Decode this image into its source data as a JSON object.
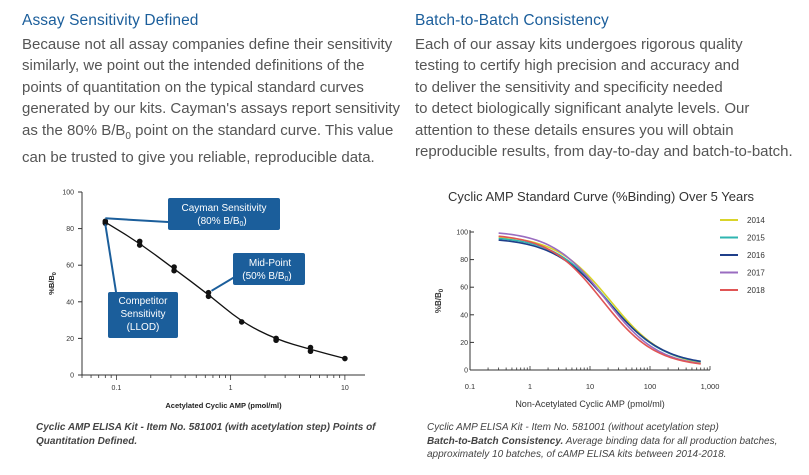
{
  "left": {
    "heading": "Assay Sensitivity Defined",
    "para": [
      "Because not all assay companies define their sensitivity",
      "similarly, we point out the intended definitions of the",
      "points of quantitation on the typical standard curves",
      "generated by our kits. Cayman's assays report sensitivity",
      "as the 80% B/B0 point on the standard curve. This value",
      "can be trusted to give you reliable, reproducible data."
    ],
    "caption_bold": "Cyclic AMP ELISA Kit - Item No. 581001 (with acetylation step) Points of Quantitation Defined."
  },
  "right": {
    "heading": "Batch-to-Batch Consistency",
    "para": [
      "Each of our assay kits undergoes rigorous quality",
      "testing to certify high precision and accuracy and",
      "to deliver the sensitivity and specificity needed",
      "to detect biologically significant analyte levels. Our",
      "attention to these details ensures you will obtain",
      "reproducible results, from day-to-day and batch-to-batch."
    ],
    "caption_line1": "Cyclic AMP ELISA Kit - Item No. 581001 (without acetylation step)",
    "caption_bold": "Batch-to-Batch Consistency.",
    "caption_rest": " Average binding data for all production batches, approximately 10 batches, of cAMP ELISA kits between 2014-2018."
  },
  "chart_data": [
    {
      "type": "scatter",
      "title": "",
      "xlabel": "Acetylated Cyclic AMP (pmol/ml)",
      "ylabel": "%B/B0",
      "xscale": "log",
      "xlim": [
        0.05,
        15
      ],
      "ylim": [
        0,
        100
      ],
      "xticks": [
        "0.1",
        "1",
        "10"
      ],
      "yticks": [
        "0",
        "20",
        "40",
        "60",
        "80",
        "100"
      ],
      "points": [
        {
          "x": 0.08,
          "y": 83
        },
        {
          "x": 0.08,
          "y": 84
        },
        {
          "x": 0.16,
          "y": 71
        },
        {
          "x": 0.16,
          "y": 73
        },
        {
          "x": 0.32,
          "y": 57
        },
        {
          "x": 0.32,
          "y": 59
        },
        {
          "x": 0.64,
          "y": 43
        },
        {
          "x": 0.64,
          "y": 45
        },
        {
          "x": 1.25,
          "y": 29
        },
        {
          "x": 2.5,
          "y": 19
        },
        {
          "x": 2.5,
          "y": 20
        },
        {
          "x": 5,
          "y": 13
        },
        {
          "x": 5,
          "y": 15
        },
        {
          "x": 10,
          "y": 9
        }
      ],
      "curve": [
        {
          "x": 0.08,
          "y": 83.5
        },
        {
          "x": 0.16,
          "y": 72
        },
        {
          "x": 0.32,
          "y": 58
        },
        {
          "x": 0.64,
          "y": 44
        },
        {
          "x": 1.25,
          "y": 29
        },
        {
          "x": 2.5,
          "y": 19.5
        },
        {
          "x": 5,
          "y": 14
        },
        {
          "x": 10,
          "y": 9
        }
      ],
      "annotations": [
        {
          "label": "Cayman Sensitivity",
          "sub": "(80% B/B",
          "sub0": "0",
          "close": ")"
        },
        {
          "label": "Mid-Point",
          "sub": "(50% B/B",
          "sub0": "0",
          "close": ")"
        },
        {
          "label": "Competitor",
          "line2": "Sensitivity",
          "line3": "(LLOD)"
        }
      ],
      "annotation_color": "#1b5e9b"
    },
    {
      "type": "line",
      "title": "Cyclic AMP Standard Curve (%Binding) Over 5 Years",
      "xlabel": "Non-Acetylated Cyclic AMP (pmol/ml)",
      "ylabel": "%B/B0",
      "xscale": "log",
      "xlim": [
        0.1,
        1000
      ],
      "ylim": [
        0,
        100
      ],
      "xticks": [
        "0.1",
        "1",
        "10",
        "100",
        "1,000"
      ],
      "yticks": [
        "0",
        "20",
        "40",
        "60",
        "80",
        "100"
      ],
      "legend_position": "top-right",
      "series": [
        {
          "name": "2014",
          "color": "#d9d42a",
          "ic50": 22,
          "slope": 0.95,
          "top": 98,
          "bottom": 2
        },
        {
          "name": "2015",
          "color": "#2fb5b0",
          "ic50": 20,
          "slope": 0.95,
          "top": 97,
          "bottom": 3
        },
        {
          "name": "2016",
          "color": "#1f3f8a",
          "ic50": 20,
          "slope": 0.93,
          "top": 96,
          "bottom": 3
        },
        {
          "name": "2017",
          "color": "#9a6cc0",
          "ic50": 18,
          "slope": 0.98,
          "top": 101,
          "bottom": 2
        },
        {
          "name": "2018",
          "color": "#e05555",
          "ic50": 16,
          "slope": 0.97,
          "top": 99,
          "bottom": 2
        }
      ],
      "x_range": [
        0.3,
        700
      ]
    }
  ]
}
